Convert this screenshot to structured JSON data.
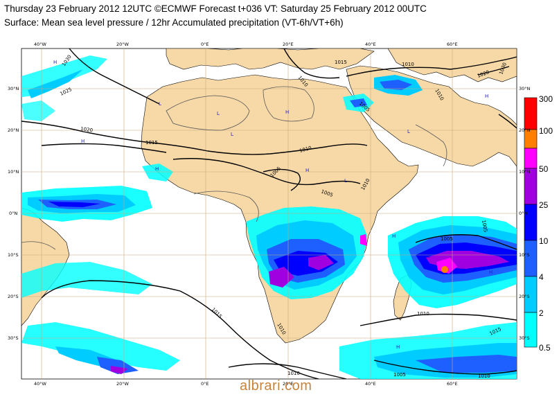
{
  "header": {
    "title_line1": "Thursday 23 February 2012 12UTC ©ECMWF Forecast t+036 VT: Saturday 25 February 2012 00UTC",
    "title_line2": "Surface: Mean sea level pressure / 12hr Accumulated precipitation (VT-6h/VT+6h)"
  },
  "map": {
    "lon_labels": [
      "40°W",
      "20°W",
      "0°E",
      "20°E",
      "40°E",
      "60°E"
    ],
    "lat_labels_left": [
      "30°N",
      "20°N",
      "10°N",
      "0°N",
      "10°S",
      "20°S",
      "30°S"
    ],
    "lat_labels_right": [
      "30°N",
      "20°N",
      "10°N",
      "0°N",
      "10°S",
      "20°S",
      "30°S"
    ],
    "isobar_labels": [
      "1030",
      "1025",
      "1020",
      "1015",
      "1010",
      "1005",
      "1015",
      "1010",
      "1005",
      "1010",
      "1005",
      "1010",
      "1020",
      "1030",
      "1015",
      "1010",
      "1010",
      "1005",
      "1010",
      "1015",
      "1005",
      "1010",
      "1005",
      "1010"
    ],
    "pressure_markers": [
      "H",
      "L",
      "H",
      "L",
      "L",
      "H",
      "H",
      "L",
      "H",
      "H",
      "L",
      "H",
      "H",
      "L",
      "H"
    ],
    "colors": {
      "ocean": "#ffffff",
      "land": "#f7d9a8",
      "grid": "#c8a878",
      "isobar": "#000000",
      "isobar_thin": "#555555"
    }
  },
  "legend": {
    "values": [
      "300",
      "100",
      "50",
      "25",
      "10",
      "4",
      "2",
      "0.5"
    ],
    "colors": [
      "#ff0000",
      "#ff8000",
      "#ff00ff",
      "#a000e0",
      "#0000ff",
      "#1e60ff",
      "#00ccff",
      "#00ffff"
    ]
  },
  "watermark": "albrari.com"
}
